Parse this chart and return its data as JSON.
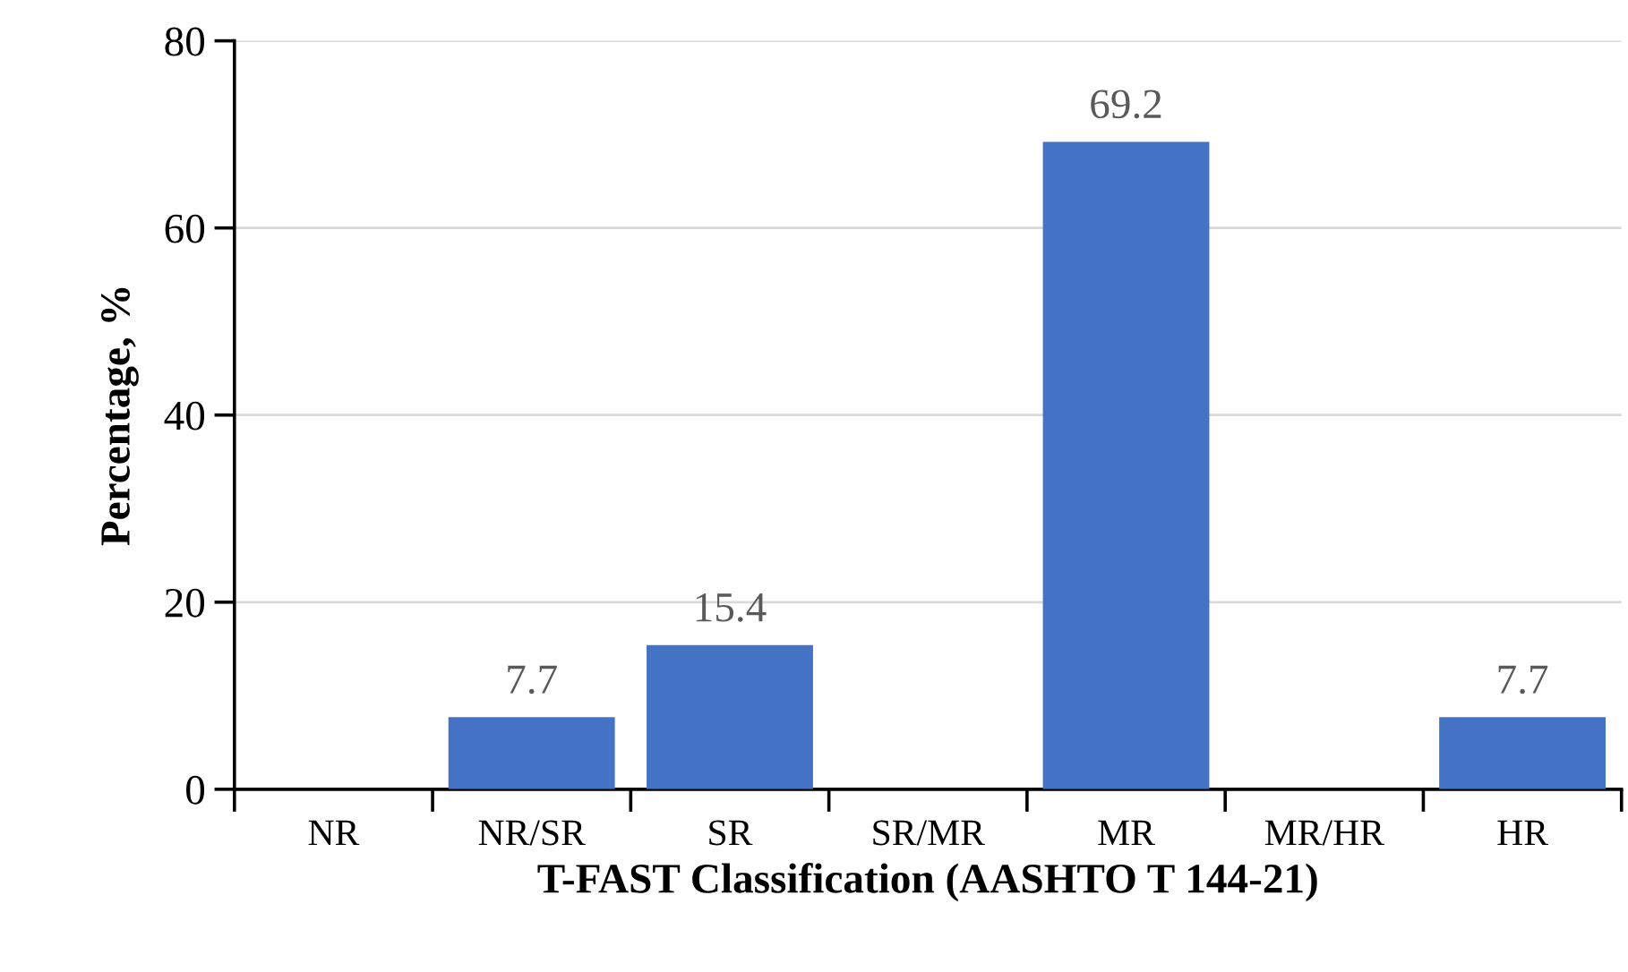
{
  "chart_data": {
    "type": "bar",
    "xlabel": "T-FAST Classification (AASHTO T 144-21)",
    "ylabel": "Percentage, %",
    "categories": [
      "NR",
      "NR/SR",
      "SR",
      "SR/MR",
      "MR",
      "MR/HR",
      "HR"
    ],
    "values": [
      0,
      7.7,
      15.4,
      0,
      69.2,
      0,
      7.7
    ],
    "value_labels": [
      null,
      "7.7",
      "15.4",
      null,
      "69.2",
      null,
      "7.7"
    ],
    "color": "#4472c4",
    "ylim": [
      0,
      80
    ],
    "yticks": [
      0,
      20,
      40,
      60,
      80
    ],
    "grid": "y"
  }
}
